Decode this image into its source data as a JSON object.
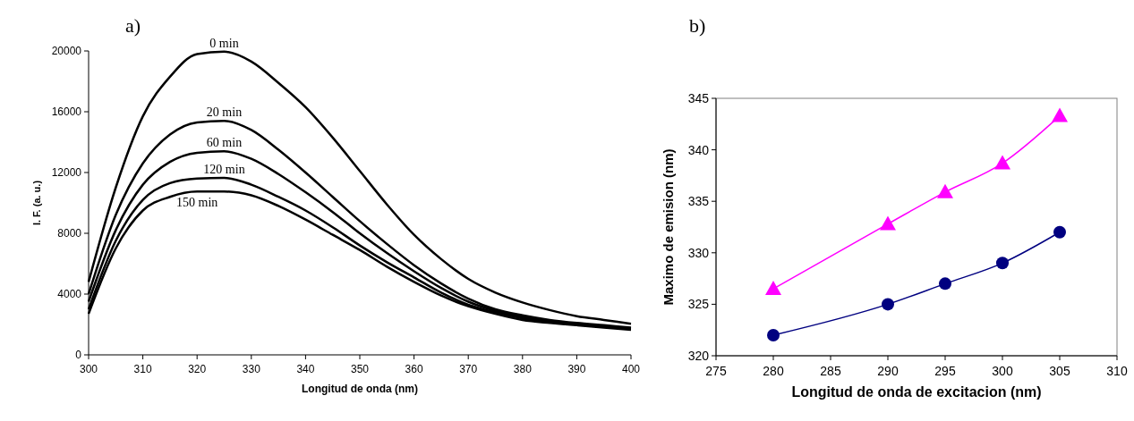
{
  "chart_data": [
    {
      "type": "line",
      "title": "a)",
      "xlabel": "Longitud de onda (nm)",
      "ylabel": "I. F. (a. u.)",
      "x": [
        300,
        305,
        310,
        315,
        320,
        325,
        330,
        335,
        340,
        345,
        350,
        355,
        360,
        365,
        370,
        375,
        380,
        385,
        390,
        395,
        400
      ],
      "xlim": [
        300,
        400
      ],
      "xticks": [
        300,
        310,
        320,
        330,
        340,
        350,
        360,
        370,
        380,
        390,
        400
      ],
      "ylim": [
        0,
        20000
      ],
      "yticks": [
        0,
        4000,
        8000,
        12000,
        16000,
        20000
      ],
      "grid": false,
      "marker": "none",
      "line_style": "solid",
      "series": [
        {
          "name": "0 min",
          "color": "#000000",
          "values": [
            4800,
            11000,
            15700,
            18300,
            19800,
            19950,
            19300,
            17900,
            16300,
            14300,
            12100,
            9900,
            7900,
            6300,
            5000,
            4100,
            3450,
            2950,
            2550,
            2300,
            2050
          ]
        },
        {
          "name": "20 min",
          "color": "#000000",
          "values": [
            4000,
            9200,
            12600,
            14500,
            15300,
            15400,
            14800,
            13500,
            12000,
            10400,
            8800,
            7300,
            5900,
            4700,
            3700,
            3000,
            2600,
            2300,
            2100,
            1950,
            1800
          ]
        },
        {
          "name": "60 min",
          "color": "#000000",
          "values": [
            3500,
            8200,
            11200,
            12700,
            13300,
            13400,
            12900,
            11900,
            10700,
            9400,
            8000,
            6700,
            5500,
            4400,
            3500,
            2900,
            2500,
            2200,
            2000,
            1900,
            1750
          ]
        },
        {
          "name": "120 min",
          "color": "#000000",
          "values": [
            3000,
            7500,
            10200,
            11300,
            11600,
            11650,
            11200,
            10400,
            9500,
            8400,
            7200,
            6100,
            5100,
            4100,
            3300,
            2800,
            2400,
            2150,
            2000,
            1850,
            1700
          ]
        },
        {
          "name": "150 min",
          "color": "#000000",
          "values": [
            2700,
            7000,
            9500,
            10400,
            10750,
            10750,
            10500,
            9800,
            8900,
            7900,
            6900,
            5800,
            4800,
            3900,
            3200,
            2700,
            2300,
            2100,
            1950,
            1800,
            1650
          ]
        }
      ]
    },
    {
      "type": "line",
      "title": "b)",
      "xlabel": "Longitud de onda de excitacion (nm)",
      "ylabel": "Maximo de emision (nm)",
      "x": [
        280,
        290,
        295,
        300,
        305
      ],
      "xlim": [
        275,
        310
      ],
      "xticks": [
        275,
        280,
        285,
        290,
        295,
        300,
        305,
        310
      ],
      "ylim": [
        320,
        345
      ],
      "yticks": [
        320,
        325,
        330,
        335,
        340,
        345
      ],
      "grid": false,
      "line_style": "solid",
      "series": [
        {
          "color": "#ff00ff",
          "marker": "triangle",
          "values": [
            326.5,
            332.8,
            335.9,
            338.7,
            343.3
          ]
        },
        {
          "color": "#000080",
          "marker": "circle",
          "values": [
            322,
            325,
            327,
            329,
            332
          ]
        }
      ]
    }
  ]
}
